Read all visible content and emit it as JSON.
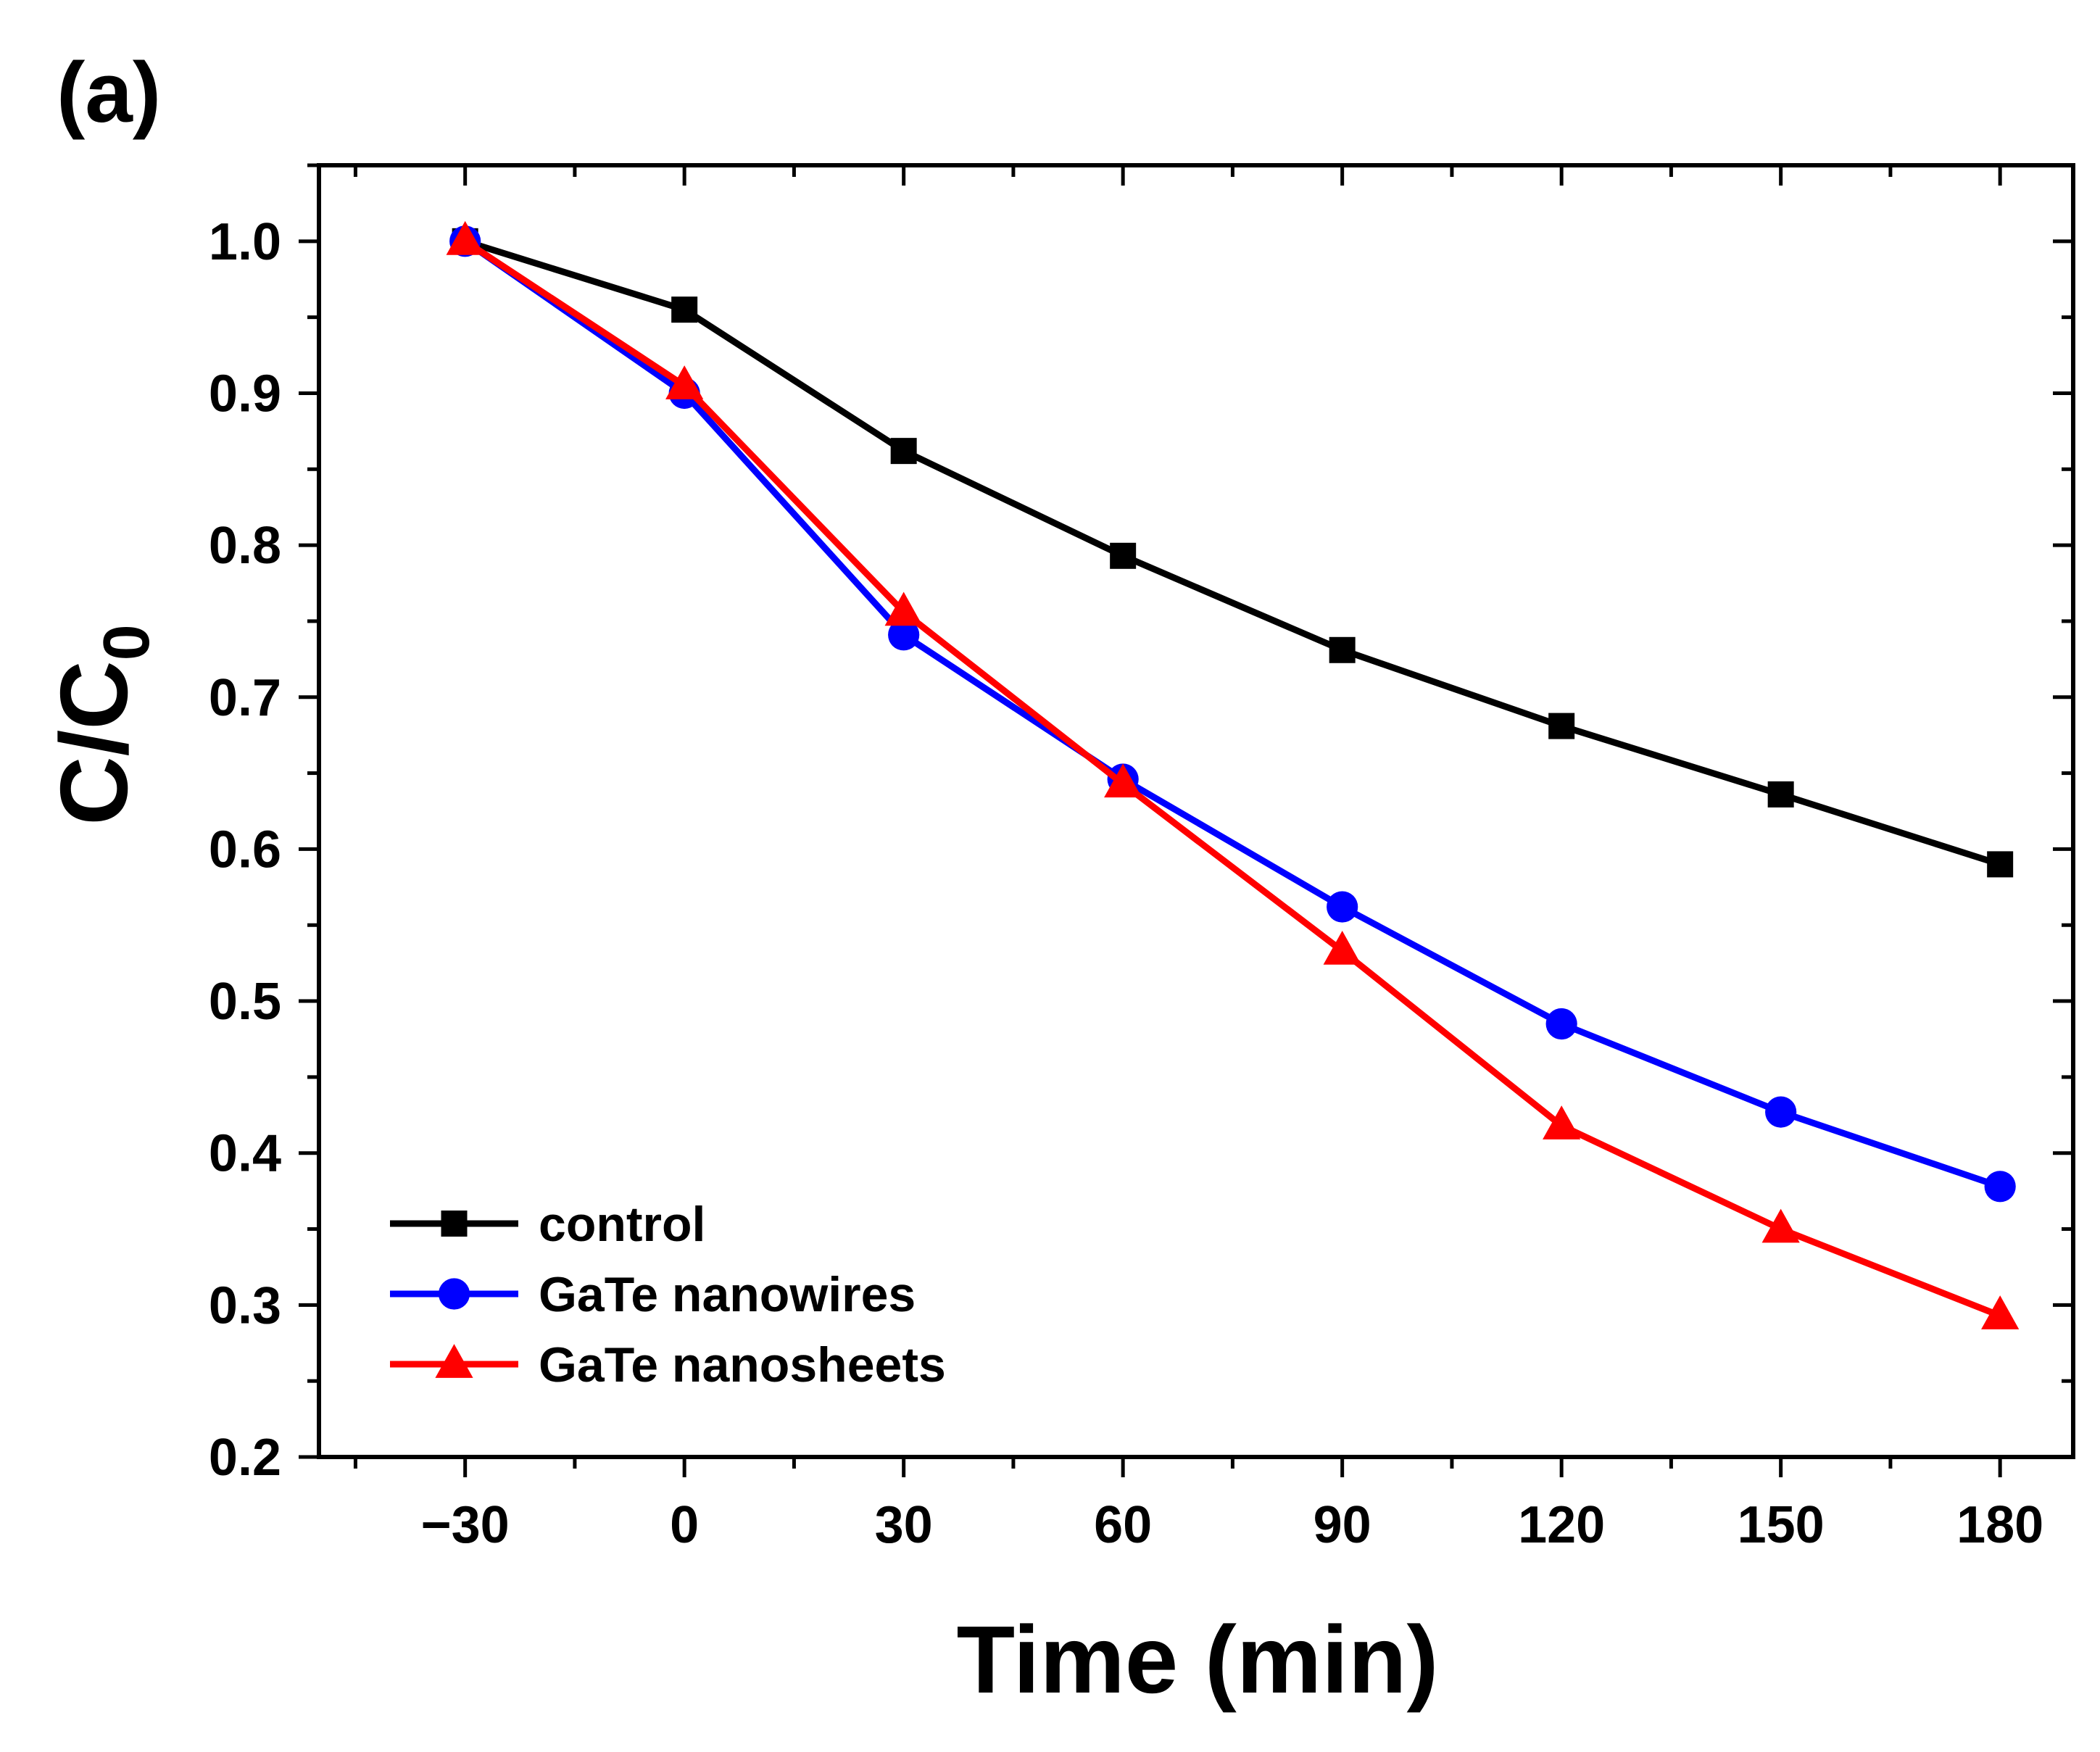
{
  "panel_label": "(a)",
  "chart_data": {
    "type": "line",
    "title": "",
    "xlabel": "Time (min)",
    "ylabel_main": "C/C",
    "ylabel_sub": "0",
    "xlim": [
      -50,
      190
    ],
    "ylim": [
      0.2,
      1.05
    ],
    "x_ticks": [
      -30,
      0,
      30,
      60,
      90,
      120,
      150,
      180
    ],
    "x_tick_labels": [
      "−30",
      "0",
      "30",
      "60",
      "90",
      "120",
      "150",
      "180"
    ],
    "y_ticks": [
      0.2,
      0.3,
      0.4,
      0.5,
      0.6,
      0.7,
      0.8,
      0.9,
      1.0
    ],
    "y_tick_labels": [
      "0.2",
      "0.3",
      "0.4",
      "0.5",
      "0.6",
      "0.7",
      "0.8",
      "0.9",
      "1.0"
    ],
    "grid": false,
    "legend_position": "bottom-left",
    "x": [
      -30,
      0,
      30,
      60,
      90,
      120,
      150,
      180
    ],
    "series": [
      {
        "name": "control",
        "color": "#000000",
        "marker": "square",
        "values": [
          1.0,
          0.955,
          0.862,
          0.793,
          0.731,
          0.681,
          0.636,
          0.59
        ]
      },
      {
        "name": "GaTe nanowires",
        "color": "#0000ff",
        "marker": "circle",
        "values": [
          1.0,
          0.9,
          0.741,
          0.646,
          0.562,
          0.485,
          0.427,
          0.378
        ]
      },
      {
        "name": "GaTe nanosheets",
        "color": "#ff0000",
        "marker": "triangle",
        "values": [
          1.0,
          0.905,
          0.756,
          0.643,
          0.533,
          0.418,
          0.35,
          0.293
        ]
      }
    ]
  }
}
